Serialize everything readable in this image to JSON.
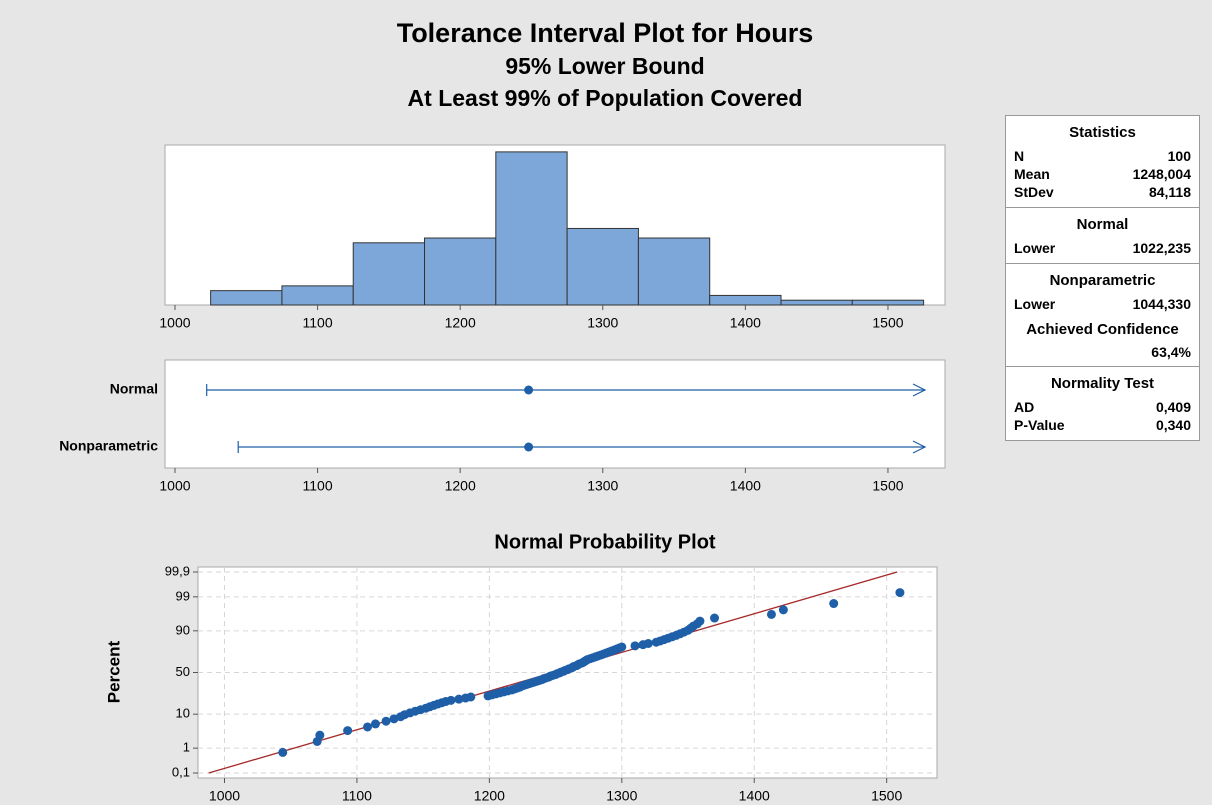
{
  "title": "Tolerance Interval Plot for Hours",
  "subtitle": [
    "95% Lower Bound",
    "At Least 99% of Population Covered"
  ],
  "chart_data": [
    {
      "type": "histogram",
      "bins": [
        1025,
        1075,
        1125,
        1175,
        1225,
        1275,
        1325,
        1375,
        1425,
        1475,
        1525
      ],
      "counts": [
        3,
        4,
        13,
        14,
        32,
        16,
        14,
        2,
        1,
        1
      ],
      "color": "#7da7d9",
      "xlim": [
        993,
        1540
      ],
      "xticks": [
        1000,
        1100,
        1200,
        1300,
        1400,
        1500
      ]
    },
    {
      "type": "interval",
      "categories": [
        "Normal",
        "Nonparametric"
      ],
      "lower": [
        1022.235,
        1044.33
      ],
      "center": [
        1248.004,
        1248.004
      ],
      "color": "#1f5fa8",
      "xlim": [
        993,
        1540
      ],
      "xticks": [
        1000,
        1100,
        1200,
        1300,
        1400,
        1500
      ]
    },
    {
      "type": "probability",
      "title": "Normal Probability Plot",
      "ylabel": "Percent",
      "x": [
        1044,
        1070,
        1072,
        1093,
        1108,
        1114,
        1122,
        1128,
        1133,
        1136,
        1140,
        1144,
        1148,
        1152,
        1155,
        1158,
        1161,
        1164,
        1167,
        1171,
        1177,
        1182,
        1186,
        1199,
        1202,
        1205,
        1208,
        1211,
        1214,
        1217,
        1219,
        1221,
        1223,
        1224,
        1226,
        1228,
        1230,
        1232,
        1234,
        1236,
        1238,
        1240,
        1241,
        1243,
        1245,
        1246,
        1248,
        1250,
        1251,
        1253,
        1254,
        1256,
        1257,
        1259,
        1260,
        1262,
        1263,
        1264,
        1266,
        1267,
        1268,
        1270,
        1271,
        1272,
        1273,
        1274,
        1276,
        1278,
        1280,
        1282,
        1284,
        1286,
        1288,
        1290,
        1292,
        1294,
        1296,
        1298,
        1300,
        1310,
        1316,
        1320,
        1326,
        1329,
        1332,
        1335,
        1338,
        1341,
        1344,
        1347,
        1350,
        1352,
        1354,
        1357,
        1359,
        1370,
        1413,
        1422,
        1460,
        1510
      ],
      "y": [
        0.7,
        1.7,
        2.7,
        3.7,
        4.7,
        5.7,
        6.7,
        7.7,
        8.7,
        9.7,
        10.7,
        11.7,
        12.6,
        13.6,
        14.6,
        15.6,
        16.6,
        17.6,
        18.6,
        19.6,
        20.6,
        21.6,
        22.6,
        23.6,
        24.6,
        25.6,
        26.6,
        27.6,
        28.6,
        29.6,
        30.6,
        31.6,
        32.6,
        33.6,
        34.6,
        35.6,
        36.6,
        37.5,
        38.5,
        39.5,
        40.5,
        41.5,
        42.5,
        43.5,
        44.5,
        45.5,
        46.5,
        47.5,
        48.5,
        49.5,
        50.5,
        51.5,
        52.5,
        53.5,
        54.5,
        55.5,
        56.5,
        57.5,
        58.5,
        59.5,
        60.5,
        61.5,
        62.4,
        63.4,
        64.4,
        65.4,
        66.4,
        67.4,
        68.4,
        69.4,
        70.4,
        71.4,
        72.4,
        73.4,
        74.4,
        75.4,
        76.4,
        77.4,
        78.4,
        79.4,
        80.4,
        81.4,
        82.4,
        83.4,
        84.4,
        85.4,
        86.4,
        87.3,
        88.3,
        89.3,
        90.3,
        91.3,
        92.3,
        93.3,
        94.3,
        95.3,
        96.3,
        97.3,
        98.3,
        99.3
      ],
      "fit": {
        "mean": 1248.004,
        "stdev": 84.118
      },
      "color": "#1f5fa8",
      "line_color": "#a52a2a",
      "xlim": [
        980,
        1538
      ],
      "xticks": [
        1000,
        1100,
        1200,
        1300,
        1400,
        1500
      ],
      "ylim": [
        0.1,
        99.9
      ],
      "yticks": [
        {
          "value": 0.1,
          "label": "0,1"
        },
        1,
        10,
        50,
        90,
        99,
        {
          "value": 99.9,
          "label": "99,9"
        }
      ],
      "yscale": "probit",
      "grid": true
    }
  ],
  "panel": {
    "sections": [
      {
        "title": "Statistics",
        "rows": [
          [
            "N",
            "100"
          ],
          [
            "Mean",
            "1248,004"
          ],
          [
            "StDev",
            "84,118"
          ]
        ]
      },
      {
        "title": "Normal",
        "rows": [
          [
            "Lower",
            "1022,235"
          ]
        ]
      },
      {
        "title": "Nonparametric",
        "rows": [
          [
            "Lower",
            "1044,330"
          ]
        ],
        "subtitle": "Achieved Confidence",
        "subvalue": "63,4%"
      },
      {
        "title": "Normality Test",
        "rows": [
          [
            "AD",
            "0,409"
          ],
          [
            "P-Value",
            "0,340"
          ]
        ]
      }
    ]
  }
}
